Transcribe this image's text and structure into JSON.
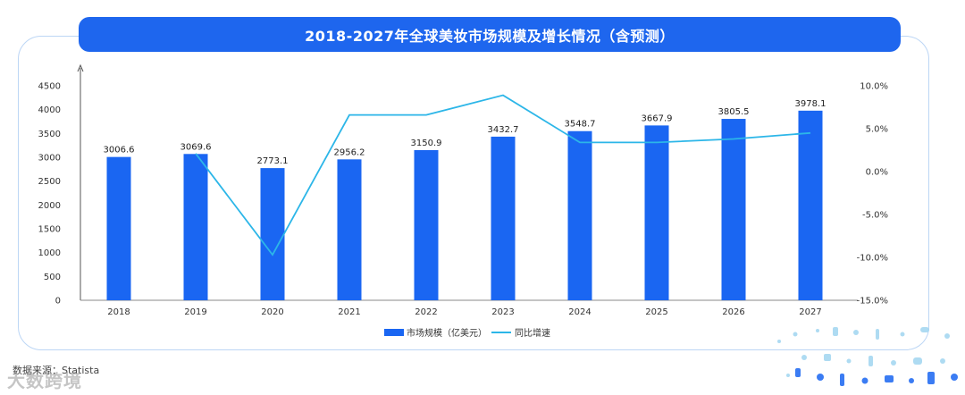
{
  "title": "2018-2027年全球美妆市场规模及增长情况（含预测）",
  "source": "数据来源：Statista",
  "watermark": "大数跨境",
  "colors": {
    "bar": "#1a66f2",
    "line": "#2cb6e8",
    "banner": "#1e66ee"
  },
  "chart_data": {
    "type": "bar",
    "title": "2018-2027年全球美妆市场规模及增长情况（含预测）",
    "categories": [
      "2018",
      "2019",
      "2020",
      "2021",
      "2022",
      "2023",
      "2024",
      "2025",
      "2026",
      "2027"
    ],
    "series": [
      {
        "name": "市场规模（亿美元）",
        "type": "bar",
        "axis": "left",
        "values": [
          3006.6,
          3069.6,
          2773.1,
          2956.2,
          3150.9,
          3432.7,
          3548.7,
          3667.9,
          3805.5,
          3978.1
        ],
        "labels": [
          "3006.6",
          "3069.6",
          "2773.1",
          "2956.2",
          "3150.9",
          "3432.7",
          "3548.7",
          "3667.9",
          "3805.5",
          "3978.1"
        ]
      },
      {
        "name": "同比增速",
        "type": "line",
        "axis": "right",
        "values": [
          null,
          2.1,
          -9.7,
          6.6,
          6.6,
          8.9,
          3.4,
          3.4,
          3.8,
          4.5
        ]
      }
    ],
    "ylim_left": [
      0,
      4500
    ],
    "yticks_left": [
      "0",
      "500",
      "1000",
      "1500",
      "2000",
      "2500",
      "3000",
      "3500",
      "4000",
      "4500"
    ],
    "ylim_right": [
      -15,
      10
    ],
    "yticks_right": [
      "-15.0%",
      "-10.0%",
      "-5.0%",
      "0.0%",
      "5.0%",
      "10.0%"
    ],
    "legend_position": "bottom",
    "grid": false
  }
}
